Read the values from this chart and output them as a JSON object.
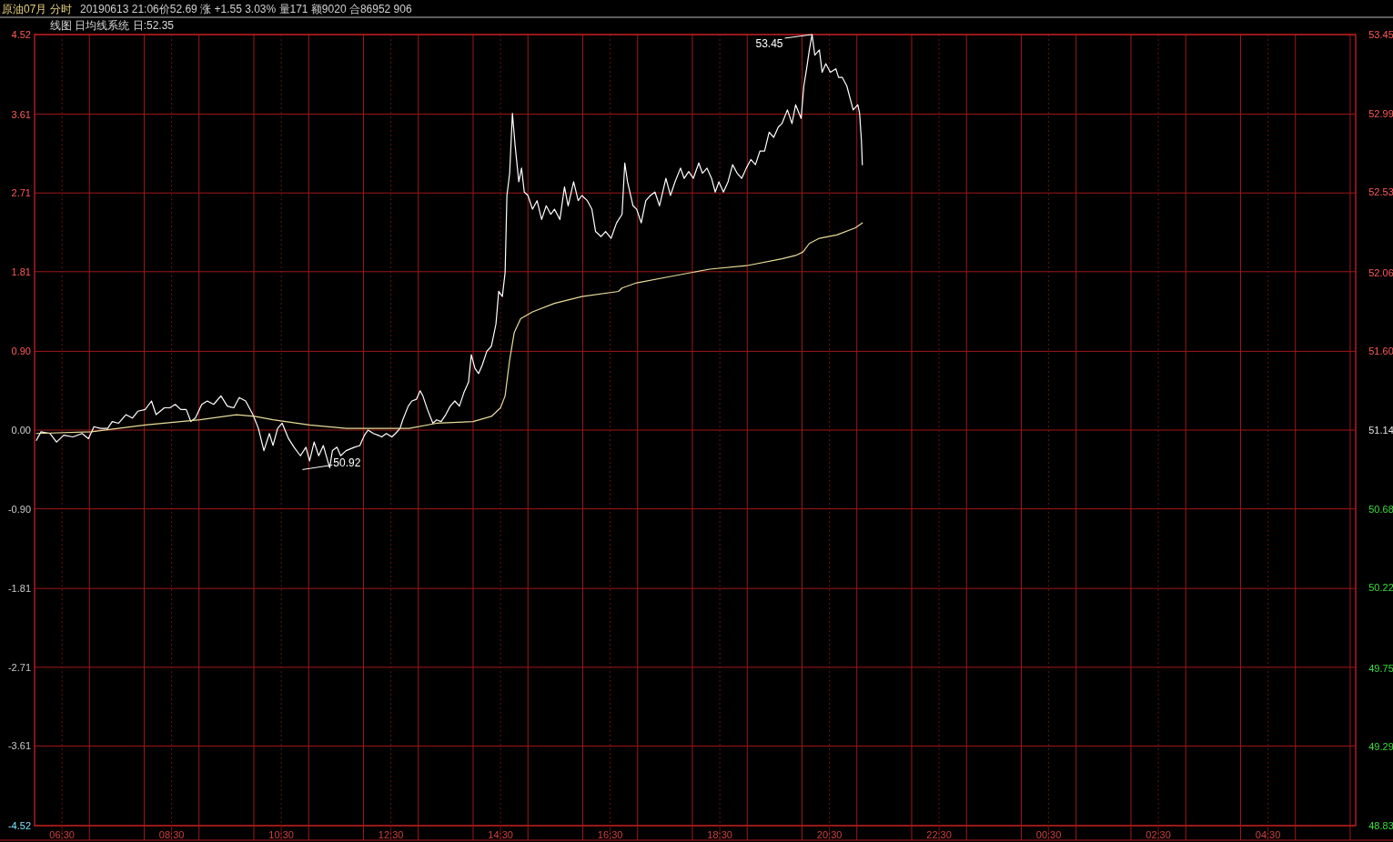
{
  "chart_data": {
    "type": "line",
    "title": "原油07月 分时",
    "subtitle": "20190613 21:06价52.69 涨 +1.55 3.03% 量171 额9020 合86952 906",
    "annotations": [
      "线图 日均线系统 日:52.35",
      "53.45",
      "50.92"
    ],
    "xlim": [
      "2019-06-13T06:00",
      "2019-06-14T06:06"
    ],
    "xticks": [
      {
        "value": "2019-06-13T06:30",
        "label": "06:30"
      },
      {
        "value": "2019-06-13T07:00",
        "label": null
      },
      {
        "value": "2019-06-13T08:00",
        "label": null
      },
      {
        "value": "2019-06-13T08:30",
        "label": "08:30"
      },
      {
        "value": "2019-06-13T09:00",
        "label": null
      },
      {
        "value": "2019-06-13T10:00",
        "label": null
      },
      {
        "value": "2019-06-13T10:30",
        "label": "10:30"
      },
      {
        "value": "2019-06-13T11:00",
        "label": null
      },
      {
        "value": "2019-06-13T12:00",
        "label": null
      },
      {
        "value": "2019-06-13T12:30",
        "label": "12:30"
      },
      {
        "value": "2019-06-13T13:00",
        "label": null
      },
      {
        "value": "2019-06-13T14:00",
        "label": null
      },
      {
        "value": "2019-06-13T14:30",
        "label": "14:30"
      },
      {
        "value": "2019-06-13T15:00",
        "label": null
      },
      {
        "value": "2019-06-13T16:00",
        "label": null
      },
      {
        "value": "2019-06-13T16:30",
        "label": "16:30"
      },
      {
        "value": "2019-06-13T17:00",
        "label": null
      },
      {
        "value": "2019-06-13T18:00",
        "label": null
      },
      {
        "value": "2019-06-13T18:30",
        "label": "18:30"
      },
      {
        "value": "2019-06-13T19:00",
        "label": null
      },
      {
        "value": "2019-06-13T20:00",
        "label": null
      },
      {
        "value": "2019-06-13T20:30",
        "label": "20:30"
      },
      {
        "value": "2019-06-13T21:00",
        "label": null
      },
      {
        "value": "2019-06-13T22:00",
        "label": null
      },
      {
        "value": "2019-06-13T22:30",
        "label": "22:30"
      },
      {
        "value": "2019-06-13T23:00",
        "label": null
      },
      {
        "value": "2019-06-14T00:00",
        "label": null
      },
      {
        "value": "2019-06-14T00:30",
        "label": "00:30"
      },
      {
        "value": "2019-06-14T01:00",
        "label": null
      },
      {
        "value": "2019-06-14T02:00",
        "label": null
      },
      {
        "value": "2019-06-14T02:30",
        "label": "02:30"
      },
      {
        "value": "2019-06-14T03:00",
        "label": null
      },
      {
        "value": "2019-06-14T04:00",
        "label": null
      },
      {
        "value": "2019-06-14T04:30",
        "label": "04:30"
      },
      {
        "value": "2019-06-14T05:00",
        "label": null
      },
      {
        "value": "2019-06-14T06:00",
        "label": null
      }
    ],
    "ylim": [
      -4.52,
      4.52
    ],
    "yticks": [
      4.52,
      3.61,
      2.71,
      1.81,
      {
        "value": 0.9,
        "label": "0.90"
      },
      {
        "value": 0,
        "label": "0.00"
      },
      {
        "value": -0.9,
        "label": "-0.90"
      },
      -1.81,
      -2.71,
      -3.61,
      -4.52
    ],
    "y2lim": [
      48.83,
      53.45
    ],
    "y2ticks": [
      53.45,
      52.99,
      52.53,
      52.06,
      {
        "value": 51.6,
        "label": "51.60"
      },
      51.14,
      50.68,
      50.22,
      49.75,
      49.29,
      48.83
    ],
    "grid": true,
    "series": [
      {
        "color": "#ffffff",
        "axis": "y2",
        "x": [
          "2019-06-13T06:02",
          "2019-06-13T06:07",
          "2019-06-13T06:17",
          "2019-06-13T06:24",
          "2019-06-13T06:32",
          "2019-06-13T06:42",
          "2019-06-13T06:52",
          "2019-06-13T06:59",
          "2019-06-13T07:05",
          "2019-06-13T07:12",
          "2019-06-13T07:20",
          "2019-06-13T07:25",
          "2019-06-13T07:32",
          "2019-06-13T07:40",
          "2019-06-13T07:47",
          "2019-06-13T07:53",
          "2019-06-13T08:01",
          "2019-06-13T08:08",
          "2019-06-13T08:13",
          "2019-06-13T08:22",
          "2019-06-13T08:28",
          "2019-06-13T08:34",
          "2019-06-13T08:40",
          "2019-06-13T08:46",
          "2019-06-13T08:51",
          "2019-06-13T08:56",
          "2019-06-13T09:03",
          "2019-06-13T09:09",
          "2019-06-13T09:16",
          "2019-06-13T09:24",
          "2019-06-13T09:31",
          "2019-06-13T09:38",
          "2019-06-13T09:44",
          "2019-06-13T09:51",
          "2019-06-13T09:59",
          "2019-06-13T10:05",
          "2019-06-13T10:11",
          "2019-06-13T10:17",
          "2019-06-13T10:21",
          "2019-06-13T10:26",
          "2019-06-13T10:31",
          "2019-06-13T10:38",
          "2019-06-13T10:44",
          "2019-06-13T10:51",
          "2019-06-13T10:57",
          "2019-06-13T11:01",
          "2019-06-13T11:06",
          "2019-06-13T11:11",
          "2019-06-13T11:16",
          "2019-06-13T11:23",
          "2019-06-13T11:26",
          "2019-06-13T11:31",
          "2019-06-13T11:35",
          "2019-06-13T11:41",
          "2019-06-13T11:50",
          "2019-06-13T11:56",
          "2019-06-13T12:01",
          "2019-06-13T12:05",
          "2019-06-13T12:11",
          "2019-06-13T12:16",
          "2019-06-13T12:20",
          "2019-06-13T12:25",
          "2019-06-13T12:31",
          "2019-06-13T12:35",
          "2019-06-13T12:40",
          "2019-06-13T12:43",
          "2019-06-13T12:49",
          "2019-06-13T12:53",
          "2019-06-13T12:58",
          "2019-06-13T13:02",
          "2019-06-13T13:05",
          "2019-06-13T13:10",
          "2019-06-13T13:16",
          "2019-06-13T13:20",
          "2019-06-13T13:25",
          "2019-06-13T13:30",
          "2019-06-13T13:35",
          "2019-06-13T13:40",
          "2019-06-13T13:45",
          "2019-06-13T13:50",
          "2019-06-13T13:55",
          "2019-06-13T13:58",
          "2019-06-13T14:02",
          "2019-06-13T14:06",
          "2019-06-13T14:10",
          "2019-06-13T14:15",
          "2019-06-13T14:20",
          "2019-06-13T14:25",
          "2019-06-13T14:28",
          "2019-06-13T14:32",
          "2019-06-13T14:35",
          "2019-06-13T14:37",
          "2019-06-13T14:40",
          "2019-06-13T14:43",
          "2019-06-13T14:46",
          "2019-06-13T14:50",
          "2019-06-13T14:53",
          "2019-06-13T14:56",
          "2019-06-13T15:00",
          "2019-06-13T15:05",
          "2019-06-13T15:10",
          "2019-06-13T15:15",
          "2019-06-13T15:20",
          "2019-06-13T15:25",
          "2019-06-13T15:29",
          "2019-06-13T15:35",
          "2019-06-13T15:40",
          "2019-06-13T15:44",
          "2019-06-13T15:50",
          "2019-06-13T15:55",
          "2019-06-13T15:59",
          "2019-06-13T16:05",
          "2019-06-13T16:10",
          "2019-06-13T16:14",
          "2019-06-13T16:20",
          "2019-06-13T16:25",
          "2019-06-13T16:31",
          "2019-06-13T16:37",
          "2019-06-13T16:43",
          "2019-06-13T16:46",
          "2019-06-13T16:49",
          "2019-06-13T16:55",
          "2019-06-13T16:59",
          "2019-06-13T17:04",
          "2019-06-13T17:09",
          "2019-06-13T17:14",
          "2019-06-13T17:19",
          "2019-06-13T17:24",
          "2019-06-13T17:31",
          "2019-06-13T17:36",
          "2019-06-13T17:41",
          "2019-06-13T17:47",
          "2019-06-13T17:51",
          "2019-06-13T17:56",
          "2019-06-13T18:01",
          "2019-06-13T18:07",
          "2019-06-13T18:11",
          "2019-06-13T18:16",
          "2019-06-13T18:21",
          "2019-06-13T18:25",
          "2019-06-13T18:29",
          "2019-06-13T18:34",
          "2019-06-13T18:39",
          "2019-06-13T18:44",
          "2019-06-13T18:49",
          "2019-06-13T18:54",
          "2019-06-13T18:59",
          "2019-06-13T19:04",
          "2019-06-13T19:09",
          "2019-06-13T19:14",
          "2019-06-13T19:19",
          "2019-06-13T19:24",
          "2019-06-13T19:29",
          "2019-06-13T19:34",
          "2019-06-13T19:38",
          "2019-06-13T19:44",
          "2019-06-13T19:49",
          "2019-06-13T19:53",
          "2019-06-13T19:59",
          "2019-06-13T20:02",
          "2019-06-13T20:05",
          "2019-06-13T20:08",
          "2019-06-13T20:11",
          "2019-06-13T20:14",
          "2019-06-13T20:19",
          "2019-06-13T20:22",
          "2019-06-13T20:26",
          "2019-06-13T20:31",
          "2019-06-13T20:37",
          "2019-06-13T20:40",
          "2019-06-13T20:44",
          "2019-06-13T20:49",
          "2019-06-13T20:53",
          "2019-06-13T20:56",
          "2019-06-13T21:01",
          "2019-06-13T21:03",
          "2019-06-13T21:05",
          "2019-06-13T21:06"
        ],
        "values": [
          51.08,
          51.13,
          51.12,
          51.07,
          51.11,
          51.1,
          51.12,
          51.09,
          51.16,
          51.15,
          51.15,
          51.19,
          51.18,
          51.23,
          51.21,
          51.25,
          51.26,
          51.31,
          51.23,
          51.27,
          51.27,
          51.29,
          51.26,
          51.26,
          51.19,
          51.21,
          51.29,
          51.31,
          51.29,
          51.34,
          51.28,
          51.27,
          51.33,
          51.31,
          51.23,
          51.15,
          51.02,
          51.12,
          51.05,
          51.15,
          51.18,
          51.09,
          51.04,
          50.99,
          51.04,
          50.96,
          51.07,
          50.99,
          51.05,
          50.92,
          51.02,
          51.04,
          50.99,
          51.02,
          51.04,
          51.05,
          51.11,
          51.14,
          51.12,
          51.11,
          51.1,
          51.12,
          51.1,
          51.12,
          51.15,
          51.2,
          51.28,
          51.31,
          51.32,
          51.37,
          51.34,
          51.26,
          51.18,
          51.2,
          51.19,
          51.23,
          51.28,
          51.31,
          51.28,
          51.36,
          51.42,
          51.58,
          51.5,
          51.47,
          51.52,
          51.6,
          51.63,
          51.76,
          51.95,
          51.92,
          52.06,
          52.51,
          52.64,
          52.99,
          52.8,
          52.59,
          52.67,
          52.53,
          52.51,
          52.43,
          52.48,
          52.37,
          52.45,
          52.4,
          52.43,
          52.37,
          52.56,
          52.45,
          52.59,
          52.48,
          52.51,
          52.48,
          52.43,
          52.3,
          52.27,
          52.3,
          52.26,
          52.35,
          52.4,
          52.7,
          52.59,
          52.45,
          52.43,
          52.35,
          52.48,
          52.51,
          52.53,
          52.45,
          52.61,
          52.51,
          52.59,
          52.67,
          52.61,
          52.65,
          52.61,
          52.7,
          52.64,
          52.67,
          52.61,
          52.53,
          52.59,
          52.53,
          52.59,
          52.69,
          52.64,
          52.61,
          52.67,
          52.72,
          52.69,
          52.77,
          52.77,
          52.88,
          52.85,
          52.91,
          52.93,
          53.01,
          52.93,
          53.04,
          52.96,
          53.15,
          53.25,
          53.36,
          53.45,
          53.33,
          53.36,
          53.23,
          53.28,
          53.23,
          53.25,
          53.2,
          53.2,
          53.15,
          53.07,
          53.01,
          53.04,
          52.99,
          52.83,
          52.69
        ]
      },
      {
        "color": "#e8dc9a",
        "axis": "y2",
        "x": [
          "2019-06-13T06:02",
          "2019-06-13T07:02",
          "2019-06-13T08:01",
          "2019-06-13T09:01",
          "2019-06-13T09:41",
          "2019-06-13T10:01",
          "2019-06-13T10:21",
          "2019-06-13T11:01",
          "2019-06-13T11:41",
          "2019-06-13T12:20",
          "2019-06-13T12:50",
          "2019-06-13T13:20",
          "2019-06-13T14:00",
          "2019-06-13T14:20",
          "2019-06-13T14:30",
          "2019-06-13T14:35",
          "2019-06-13T14:40",
          "2019-06-13T14:45",
          "2019-06-13T14:52",
          "2019-06-13T15:05",
          "2019-06-13T15:29",
          "2019-06-13T15:59",
          "2019-06-13T16:39",
          "2019-06-13T16:43",
          "2019-06-13T16:59",
          "2019-06-13T17:39",
          "2019-06-13T18:19",
          "2019-06-13T18:59",
          "2019-06-13T19:38",
          "2019-06-13T19:53",
          "2019-06-13T20:01",
          "2019-06-13T20:08",
          "2019-06-13T20:19",
          "2019-06-13T20:38",
          "2019-06-13T20:58",
          "2019-06-13T21:06"
        ],
        "values": [
          51.12,
          51.13,
          51.17,
          51.2,
          51.23,
          51.22,
          51.2,
          51.17,
          51.15,
          51.15,
          51.15,
          51.18,
          51.19,
          51.22,
          51.27,
          51.34,
          51.55,
          51.71,
          51.79,
          51.83,
          51.88,
          51.92,
          51.95,
          51.97,
          52.0,
          52.04,
          52.08,
          52.1,
          52.14,
          52.16,
          52.18,
          52.23,
          52.26,
          52.28,
          52.32,
          52.35
        ]
      }
    ]
  }
}
